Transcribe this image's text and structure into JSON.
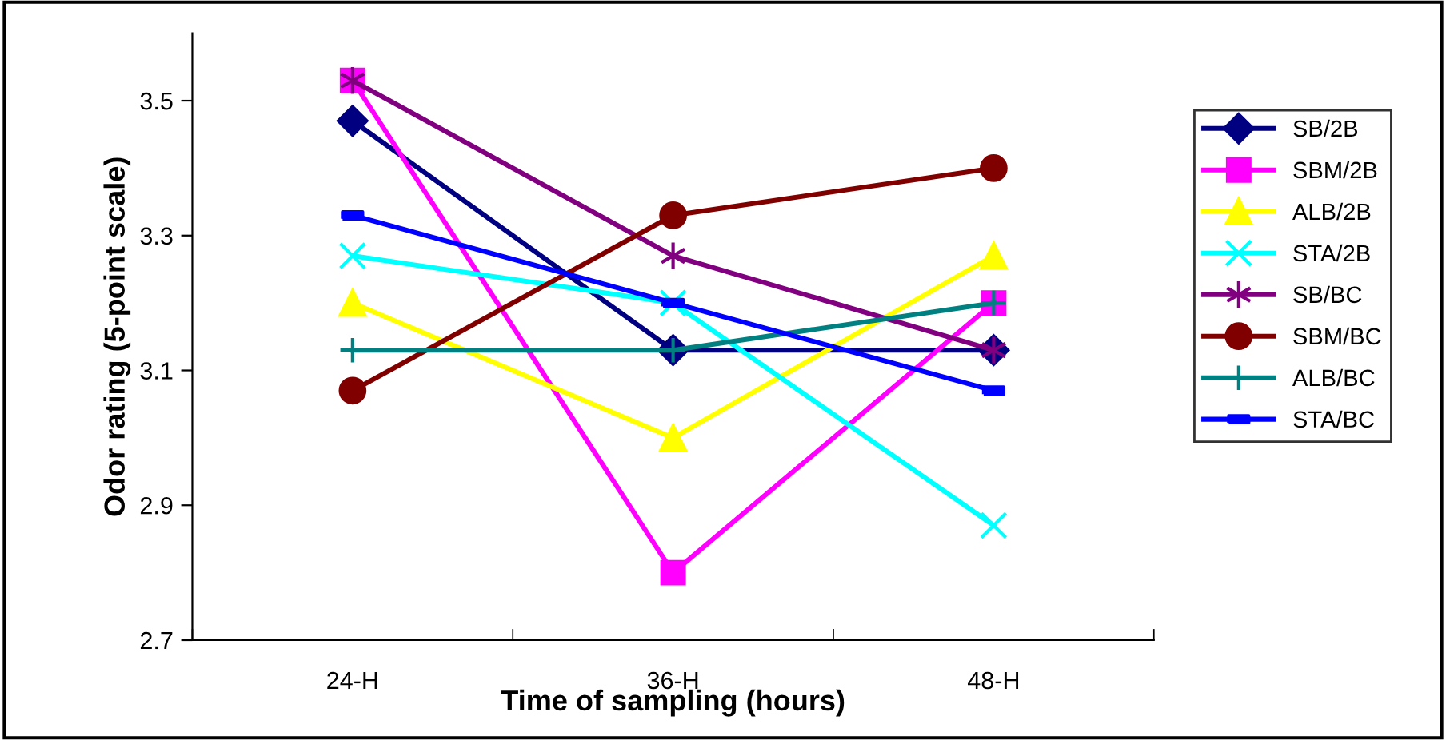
{
  "chart_data": {
    "type": "line",
    "xlabel": "Time of sampling (hours)",
    "ylabel": "Odor rating (5-point scale)",
    "categories": [
      "24-H",
      "36-H",
      "48-H"
    ],
    "ylim": [
      2.7,
      3.6
    ],
    "yticks": [
      {
        "value": 2.7,
        "label": "2.7"
      },
      {
        "value": 2.9,
        "label": "2.9"
      },
      {
        "value": 3.1,
        "label": "3.1"
      },
      {
        "value": 3.3,
        "label": "3.3"
      },
      {
        "value": 3.5,
        "label": "3.5"
      }
    ],
    "grid": false,
    "legend": "right",
    "series": [
      {
        "name": "SB/2B",
        "color": "#000080",
        "marker": "diamond",
        "values": [
          3.47,
          3.13,
          3.13
        ]
      },
      {
        "name": "SBM/2B",
        "color": "#ff00ff",
        "marker": "square",
        "values": [
          3.53,
          2.8,
          3.2
        ]
      },
      {
        "name": "ALB/2B",
        "color": "#ffff00",
        "marker": "triangle",
        "values": [
          3.2,
          3.0,
          3.27
        ]
      },
      {
        "name": "STA/2B",
        "color": "#00ffff",
        "marker": "cross",
        "values": [
          3.27,
          3.2,
          2.87
        ]
      },
      {
        "name": "SB/BC",
        "color": "#800080",
        "marker": "cross",
        "values": [
          3.53,
          3.27,
          3.13
        ]
      },
      {
        "name": "SBM/BC",
        "color": "#800000",
        "marker": "circle",
        "values": [
          3.07,
          3.33,
          3.4
        ]
      },
      {
        "name": "ALB/BC",
        "color": "#008080",
        "marker": "plus",
        "values": [
          3.13,
          3.13,
          3.2
        ]
      },
      {
        "name": "STA/BC",
        "color": "#0000ff",
        "marker": "square",
        "values": [
          3.33,
          3.2,
          3.07
        ]
      }
    ]
  }
}
